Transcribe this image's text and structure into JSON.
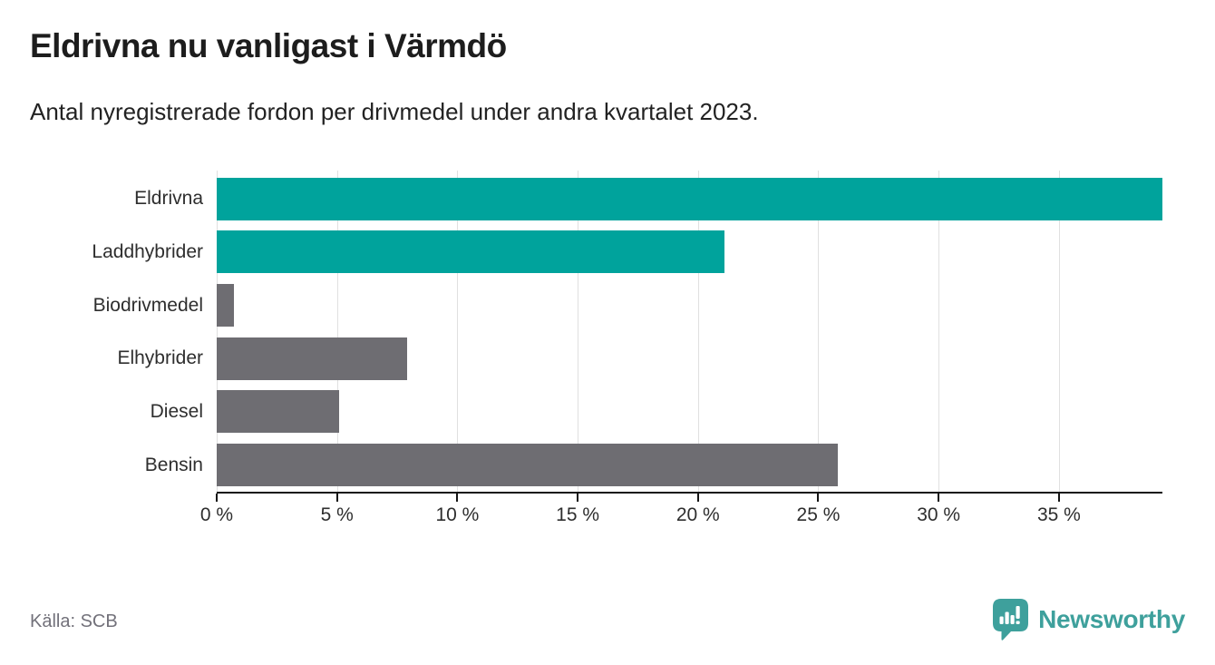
{
  "chart_data": {
    "type": "bar",
    "orientation": "horizontal",
    "title": "Eldrivna nu vanligast i Värmdö",
    "subtitle": "Antal nyregistrerade fordon per drivmedel under andra kvartalet 2023.",
    "categories": [
      "Eldrivna",
      "Laddhybrider",
      "Biodrivmedel",
      "Elhybrider",
      "Diesel",
      "Bensin"
    ],
    "values": [
      39.3,
      21.1,
      0.7,
      7.9,
      5.1,
      25.8
    ],
    "unit": "%",
    "bar_colors": [
      "#00a39c",
      "#00a39c",
      "#6e6d72",
      "#6e6d72",
      "#6e6d72",
      "#6e6d72"
    ],
    "xlim": [
      0,
      39.3
    ],
    "x_ticks": [
      0,
      5,
      10,
      15,
      20,
      25,
      30,
      35
    ],
    "x_tick_suffix": " %",
    "grid": "vertical-only",
    "legend": "none"
  },
  "footer": {
    "source": "Källa: SCB",
    "brand": "Newsworthy"
  },
  "colors": {
    "accent_teal": "#00a39c",
    "bar_gray": "#6e6d72",
    "grid_line": "#e0e0e0",
    "axis_line": "#141414",
    "text_dark": "#1d1d1d",
    "text_muted": "#72717a",
    "brand_teal": "#3ea09c"
  }
}
